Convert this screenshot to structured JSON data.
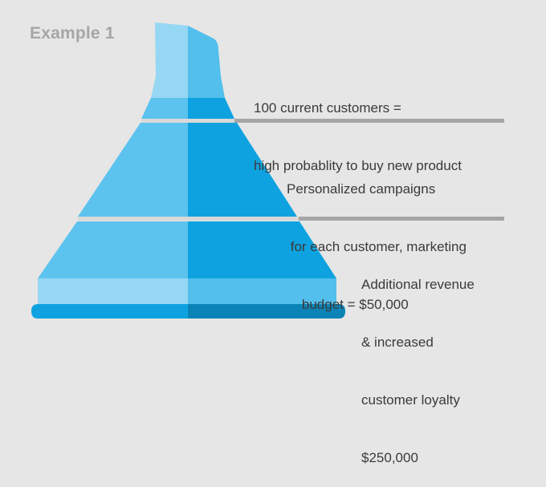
{
  "title": "Example 1",
  "stages": [
    {
      "lines": [
        "100 current customers =",
        "high probablity to buy new product"
      ]
    },
    {
      "lines": [
        "Personalized campaigns",
        " for each customer, marketing",
        "    budget = $50,000"
      ]
    },
    {
      "lines": [
        "Additional revenue",
        "& increased",
        "customer loyalty",
        "$250,000"
      ]
    }
  ],
  "colors": {
    "background": "#e6e6e6",
    "funnel_light": "#5cc3ee",
    "funnel_dark": "#0ea3e0",
    "neck_light": "#96d7f3",
    "neck_right": "#52bfec",
    "base_band_light": "#96d7f3",
    "base_band_right": "#52bfec",
    "foot_left": "#0ea3e0",
    "foot_right": "#0a84b6",
    "divider": "#a6a6a6"
  }
}
